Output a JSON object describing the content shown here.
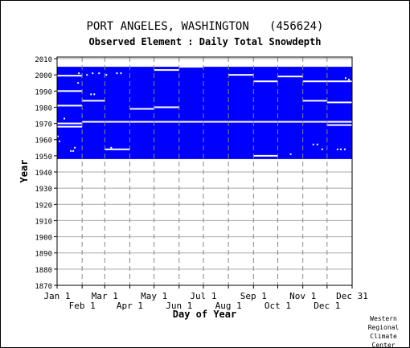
{
  "chart_data": {
    "type": "heatmap",
    "title": "PORT ANGELES, WASHINGTON   (456624)",
    "subtitle": "Observed Element : Daily Total Snowdepth",
    "xlabel": "Day of Year",
    "ylabel": "Year",
    "xlim": [
      1,
      366
    ],
    "ylim": [
      1870,
      2011
    ],
    "y_ticks": [
      1870,
      1880,
      1890,
      1900,
      1910,
      1920,
      1930,
      1940,
      1950,
      1960,
      1970,
      1980,
      1990,
      2000,
      2010
    ],
    "x_ticks_top_row": [
      {
        "label": "Jan 1",
        "day": 1
      },
      {
        "label": "Mar 1",
        "day": 60
      },
      {
        "label": "May 1",
        "day": 121
      },
      {
        "label": "Jul 1",
        "day": 182
      },
      {
        "label": "Sep 1",
        "day": 244
      },
      {
        "label": "Nov 1",
        "day": 305
      },
      {
        "label": "Dec 31",
        "day": 366
      }
    ],
    "x_ticks_bottom_row": [
      {
        "label": "Feb 1",
        "day": 32
      },
      {
        "label": "Apr 1",
        "day": 91
      },
      {
        "label": "Jun 1",
        "day": 152
      },
      {
        "label": "Aug 1",
        "day": 213
      },
      {
        "label": "Oct 1",
        "day": 274
      },
      {
        "label": "Dec 1",
        "day": 335
      }
    ],
    "grid": true,
    "data_color": "#0000ff",
    "observed_block": {
      "year_start": 1948,
      "year_end": 2005,
      "day_start": 1,
      "day_end": 366
    },
    "missing_segments": [
      {
        "year": 1999.5,
        "day_start": 1,
        "day_end": 32
      },
      {
        "year": 1990,
        "day_start": 1,
        "day_end": 32
      },
      {
        "year": 1981,
        "day_start": 1,
        "day_end": 32
      },
      {
        "year": 1970,
        "day_start": 1,
        "day_end": 32
      },
      {
        "year": 1968,
        "day_start": 1,
        "day_end": 32
      },
      {
        "year": 1984,
        "day_start": 32,
        "day_end": 60
      },
      {
        "year": 1971,
        "day_start": 32,
        "day_end": 366
      },
      {
        "year": 1954,
        "day_start": 60,
        "day_end": 91
      },
      {
        "year": 1979,
        "day_start": 91,
        "day_end": 121
      },
      {
        "year": 1980,
        "day_start": 121,
        "day_end": 152
      },
      {
        "year": 2003,
        "day_start": 121,
        "day_end": 152
      },
      {
        "year": 2005,
        "day_start": 152,
        "day_end": 182
      },
      {
        "year": 2000,
        "day_start": 213,
        "day_end": 244
      },
      {
        "year": 1996,
        "day_start": 244,
        "day_end": 274
      },
      {
        "year": 1950,
        "day_start": 244,
        "day_end": 274
      },
      {
        "year": 1999,
        "day_start": 274,
        "day_end": 305
      },
      {
        "year": 1996,
        "day_start": 305,
        "day_end": 366
      },
      {
        "year": 1984,
        "day_start": 305,
        "day_end": 335
      },
      {
        "year": 1983,
        "day_start": 335,
        "day_end": 366
      },
      {
        "year": 1971,
        "day_start": 335,
        "day_end": 366
      },
      {
        "year": 1969,
        "day_start": 335,
        "day_end": 366
      },
      {
        "year": 1962,
        "day_start": 1,
        "day_end": 3
      }
    ],
    "missing_points": [
      {
        "year": 2001,
        "day": 28
      },
      {
        "year": 2001,
        "day": 45
      },
      {
        "year": 2001,
        "day": 53
      },
      {
        "year": 2000,
        "day": 38
      },
      {
        "year": 2000,
        "day": 62
      },
      {
        "year": 2001,
        "day": 75
      },
      {
        "year": 2001,
        "day": 80
      },
      {
        "year": 1995,
        "day": 27
      },
      {
        "year": 1988,
        "day": 43
      },
      {
        "year": 1988,
        "day": 47
      },
      {
        "year": 1973,
        "day": 10
      },
      {
        "year": 1959,
        "day": 4
      },
      {
        "year": 1955,
        "day": 23
      },
      {
        "year": 1953,
        "day": 18
      },
      {
        "year": 1953,
        "day": 21
      },
      {
        "year": 1955,
        "day": 68
      },
      {
        "year": 1951,
        "day": 290
      },
      {
        "year": 1957,
        "day": 318
      },
      {
        "year": 1957,
        "day": 323
      },
      {
        "year": 1954,
        "day": 329
      },
      {
        "year": 1954,
        "day": 348
      },
      {
        "year": 1954,
        "day": 352
      },
      {
        "year": 1954,
        "day": 357
      },
      {
        "year": 1998,
        "day": 358
      },
      {
        "year": 1997,
        "day": 362
      }
    ]
  },
  "credit": {
    "line1": "Western",
    "line2": "Regional",
    "line3": "Climate",
    "line4": "Center"
  }
}
